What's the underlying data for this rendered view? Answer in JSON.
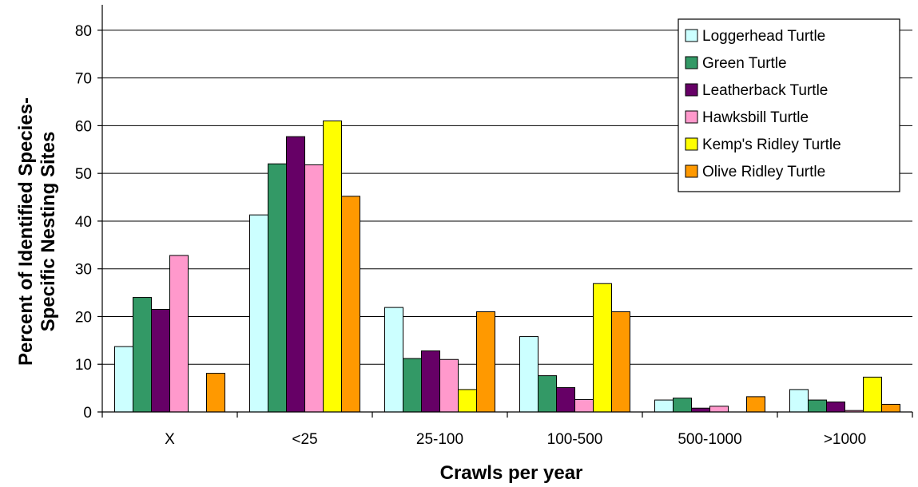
{
  "chart_data": {
    "type": "bar",
    "title": "",
    "xlabel": "Crawls per year",
    "ylabel_lines": [
      "Percent of Identified Species-",
      "Specific Nesting Sites"
    ],
    "categories": [
      "X",
      "<25",
      "25-100",
      "100-500",
      "500-1000",
      ">1000"
    ],
    "ylim": [
      0,
      85
    ],
    "yticks": [
      0,
      10,
      20,
      30,
      40,
      50,
      60,
      70,
      80
    ],
    "grid": true,
    "legend_position": "top-right",
    "series": [
      {
        "name": "Loggerhead Turtle",
        "color": "#ccffff",
        "values": [
          13.7,
          41.3,
          21.9,
          15.8,
          2.5,
          4.7
        ]
      },
      {
        "name": "Green Turtle",
        "color": "#339966",
        "values": [
          24.0,
          52.0,
          11.2,
          7.6,
          2.9,
          2.5
        ]
      },
      {
        "name": "Leatherback Turtle",
        "color": "#660066",
        "values": [
          21.5,
          57.7,
          12.8,
          5.1,
          0.8,
          2.1
        ]
      },
      {
        "name": "Hawksbill Turtle",
        "color": "#ff99cc",
        "values": [
          32.8,
          51.8,
          11.0,
          2.6,
          1.2,
          0.3
        ]
      },
      {
        "name": "Kemp's Ridley Turtle",
        "color": "#ffff00",
        "values": [
          0,
          61.0,
          4.7,
          26.9,
          0,
          7.3
        ]
      },
      {
        "name": "Olive Ridley Turtle",
        "color": "#ff9900",
        "values": [
          8.1,
          45.2,
          21.0,
          21.0,
          3.2,
          1.6
        ]
      }
    ]
  }
}
